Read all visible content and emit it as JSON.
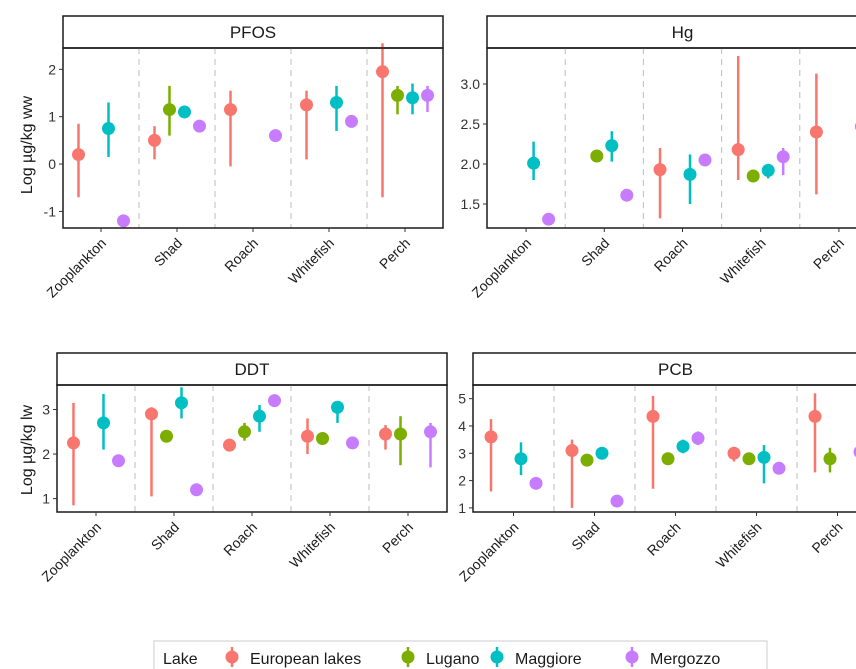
{
  "chart_data": {
    "type": "pointrange",
    "legend": {
      "title": "Lake",
      "placement": "bottom",
      "entries": [
        {
          "name": "European lakes",
          "color": "#F8766D"
        },
        {
          "name": "Lugano",
          "color": "#7CAE00"
        },
        {
          "name": "Maggiore",
          "color": "#00BFC4"
        },
        {
          "name": "Mergozzo",
          "color": "#C77CFF"
        }
      ]
    },
    "categories": [
      "Zooplankton",
      "Shad",
      "Roach",
      "Whitefish",
      "Perch"
    ],
    "rows": [
      {
        "ylabel": "Log µg/kg ww"
      },
      {
        "ylabel": "Log µg/kg lw"
      }
    ],
    "panels": [
      {
        "title": "PFOS",
        "row": 0,
        "ylim": [
          -1.35,
          2.45
        ],
        "yticks": [
          "-1",
          "0",
          "1",
          "2"
        ],
        "series": [
          {
            "name": "European lakes",
            "points": [
              {
                "category": "Zooplankton",
                "y": 0.2,
                "low": -0.7,
                "high": 0.85
              },
              {
                "category": "Shad",
                "y": 0.5,
                "low": 0.1,
                "high": 0.8
              },
              {
                "category": "Roach",
                "y": 1.15,
                "low": -0.05,
                "high": 1.55
              },
              {
                "category": "Whitefish",
                "y": 1.25,
                "low": 0.1,
                "high": 1.55
              },
              {
                "category": "Perch",
                "y": 1.95,
                "low": -0.7,
                "high": 2.55
              }
            ]
          },
          {
            "name": "Lugano",
            "points": [
              {
                "category": "Shad",
                "y": 1.15,
                "low": 0.6,
                "high": 1.65
              },
              {
                "category": "Perch",
                "y": 1.45,
                "low": 1.05,
                "high": 1.65
              }
            ]
          },
          {
            "name": "Maggiore",
            "points": [
              {
                "category": "Zooplankton",
                "y": 0.75,
                "low": 0.15,
                "high": 1.3
              },
              {
                "category": "Shad",
                "y": 1.1,
                "low": 1.0,
                "high": 1.2
              },
              {
                "category": "Whitefish",
                "y": 1.3,
                "low": 0.7,
                "high": 1.65
              },
              {
                "category": "Perch",
                "y": 1.4,
                "low": 1.05,
                "high": 1.7
              }
            ]
          },
          {
            "name": "Mergozzo",
            "points": [
              {
                "category": "Zooplankton",
                "y": -1.2,
                "low": -1.2,
                "high": -1.2
              },
              {
                "category": "Shad",
                "y": 0.8,
                "low": 0.8,
                "high": 0.8
              },
              {
                "category": "Roach",
                "y": 0.6,
                "low": 0.6,
                "high": 0.6
              },
              {
                "category": "Whitefish",
                "y": 0.9,
                "low": 0.9,
                "high": 0.9
              },
              {
                "category": "Perch",
                "y": 1.45,
                "low": 1.1,
                "high": 1.65
              }
            ]
          }
        ]
      },
      {
        "title": "Hg",
        "row": 0,
        "ylim": [
          1.2,
          3.45
        ],
        "yticks": [
          "1.5",
          "2.0",
          "2.5",
          "3.0"
        ],
        "series": [
          {
            "name": "European lakes",
            "points": [
              {
                "category": "Roach",
                "y": 1.93,
                "low": 1.32,
                "high": 2.2
              },
              {
                "category": "Whitefish",
                "y": 2.18,
                "low": 1.8,
                "high": 3.35
              },
              {
                "category": "Perch",
                "y": 2.4,
                "low": 1.62,
                "high": 3.13
              }
            ]
          },
          {
            "name": "Lugano",
            "points": [
              {
                "category": "Shad",
                "y": 2.1,
                "low": 2.1,
                "high": 2.1
              },
              {
                "category": "Whitefish",
                "y": 1.85,
                "low": 1.85,
                "high": 1.85
              }
            ]
          },
          {
            "name": "Maggiore",
            "points": [
              {
                "category": "Zooplankton",
                "y": 2.01,
                "low": 1.8,
                "high": 2.28
              },
              {
                "category": "Shad",
                "y": 2.23,
                "low": 2.03,
                "high": 2.41
              },
              {
                "category": "Roach",
                "y": 1.87,
                "low": 1.5,
                "high": 2.12
              },
              {
                "category": "Whitefish",
                "y": 1.92,
                "low": 1.82,
                "high": 2.0
              }
            ]
          },
          {
            "name": "Mergozzo",
            "points": [
              {
                "category": "Zooplankton",
                "y": 1.31,
                "low": 1.31,
                "high": 1.31
              },
              {
                "category": "Shad",
                "y": 1.61,
                "low": 1.61,
                "high": 1.61
              },
              {
                "category": "Roach",
                "y": 2.05,
                "low": 2.05,
                "high": 2.05
              },
              {
                "category": "Whitefish",
                "y": 2.09,
                "low": 1.86,
                "high": 2.2
              },
              {
                "category": "Perch",
                "y": 2.47,
                "low": 2.47,
                "high": 2.47
              }
            ]
          }
        ]
      },
      {
        "title": "DDT",
        "row": 1,
        "ylim": [
          0.7,
          3.55
        ],
        "yticks": [
          "1",
          "2",
          "3"
        ],
        "series": [
          {
            "name": "European lakes",
            "points": [
              {
                "category": "Zooplankton",
                "y": 2.25,
                "low": 0.85,
                "high": 3.15
              },
              {
                "category": "Shad",
                "y": 2.9,
                "low": 1.05,
                "high": 3.05
              },
              {
                "category": "Roach",
                "y": 2.2,
                "low": 2.2,
                "high": 2.2
              },
              {
                "category": "Whitefish",
                "y": 2.4,
                "low": 2.0,
                "high": 2.8
              },
              {
                "category": "Perch",
                "y": 2.45,
                "low": 2.1,
                "high": 2.65
              }
            ]
          },
          {
            "name": "Lugano",
            "points": [
              {
                "category": "Shad",
                "y": 2.4,
                "low": 2.4,
                "high": 2.4
              },
              {
                "category": "Roach",
                "y": 2.5,
                "low": 2.3,
                "high": 2.7
              },
              {
                "category": "Whitefish",
                "y": 2.35,
                "low": 2.35,
                "high": 2.35
              },
              {
                "category": "Perch",
                "y": 2.45,
                "low": 1.75,
                "high": 2.85
              }
            ]
          },
          {
            "name": "Maggiore",
            "points": [
              {
                "category": "Zooplankton",
                "y": 2.7,
                "low": 2.1,
                "high": 3.35
              },
              {
                "category": "Shad",
                "y": 3.15,
                "low": 2.8,
                "high": 3.5
              },
              {
                "category": "Roach",
                "y": 2.85,
                "low": 2.5,
                "high": 3.1
              },
              {
                "category": "Whitefish",
                "y": 3.05,
                "low": 2.7,
                "high": 3.15
              }
            ]
          },
          {
            "name": "Mergozzo",
            "points": [
              {
                "category": "Zooplankton",
                "y": 1.85,
                "low": 1.85,
                "high": 1.85
              },
              {
                "category": "Shad",
                "y": 1.2,
                "low": 1.2,
                "high": 1.2
              },
              {
                "category": "Roach",
                "y": 3.2,
                "low": 3.2,
                "high": 3.2
              },
              {
                "category": "Whitefish",
                "y": 2.25,
                "low": 2.25,
                "high": 2.25
              },
              {
                "category": "Perch",
                "y": 2.5,
                "low": 1.7,
                "high": 2.7
              }
            ]
          }
        ]
      },
      {
        "title": "PCB",
        "row": 1,
        "ylim": [
          0.85,
          5.5
        ],
        "yticks": [
          "1",
          "2",
          "3",
          "4",
          "5"
        ],
        "series": [
          {
            "name": "European lakes",
            "points": [
              {
                "category": "Zooplankton",
                "y": 3.6,
                "low": 1.6,
                "high": 4.25
              },
              {
                "category": "Shad",
                "y": 3.1,
                "low": 1.0,
                "high": 3.5
              },
              {
                "category": "Roach",
                "y": 4.35,
                "low": 1.7,
                "high": 5.1
              },
              {
                "category": "Whitefish",
                "y": 3.0,
                "low": 2.7,
                "high": 3.2
              },
              {
                "category": "Perch",
                "y": 4.35,
                "low": 2.3,
                "high": 5.2
              }
            ]
          },
          {
            "name": "Lugano",
            "points": [
              {
                "category": "Shad",
                "y": 2.75,
                "low": 2.75,
                "high": 2.75
              },
              {
                "category": "Roach",
                "y": 2.8,
                "low": 2.8,
                "high": 2.8
              },
              {
                "category": "Whitefish",
                "y": 2.8,
                "low": 2.8,
                "high": 2.8
              },
              {
                "category": "Perch",
                "y": 2.8,
                "low": 2.3,
                "high": 3.2
              }
            ]
          },
          {
            "name": "Maggiore",
            "points": [
              {
                "category": "Zooplankton",
                "y": 2.8,
                "low": 2.2,
                "high": 3.4
              },
              {
                "category": "Shad",
                "y": 3.0,
                "low": 2.8,
                "high": 3.2
              },
              {
                "category": "Roach",
                "y": 3.25,
                "low": 3.0,
                "high": 3.5
              },
              {
                "category": "Whitefish",
                "y": 2.85,
                "low": 1.9,
                "high": 3.3
              }
            ]
          },
          {
            "name": "Mergozzo",
            "points": [
              {
                "category": "Zooplankton",
                "y": 1.9,
                "low": 1.9,
                "high": 1.9
              },
              {
                "category": "Shad",
                "y": 1.25,
                "low": 1.25,
                "high": 1.25
              },
              {
                "category": "Roach",
                "y": 3.55,
                "low": 3.3,
                "high": 3.8
              },
              {
                "category": "Whitefish",
                "y": 2.45,
                "low": 2.45,
                "high": 2.45
              },
              {
                "category": "Perch",
                "y": 3.05,
                "low": 3.05,
                "high": 3.05
              }
            ]
          }
        ]
      }
    ]
  }
}
